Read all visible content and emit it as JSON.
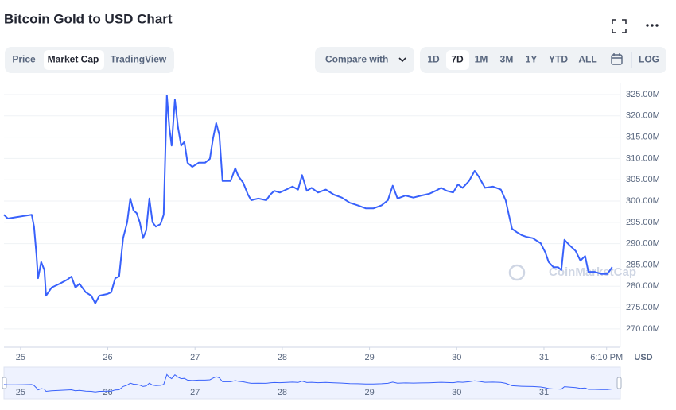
{
  "header": {
    "title": "Bitcoin Gold to USD Chart",
    "tabs": [
      "Price",
      "Market Cap",
      "TradingView"
    ],
    "compare": "Compare with",
    "ranges": [
      "1D",
      "7D",
      "1M",
      "3M",
      "1Y",
      "YTD",
      "ALL"
    ],
    "log": "LOG"
  },
  "chart_data": {
    "type": "line",
    "color": "#3861fb",
    "grid": true,
    "watermark": "CoinMarketCap",
    "currency_label": "USD",
    "xlim": [
      24.81,
      31.83
    ],
    "ylim": [
      265.7,
      327.6
    ],
    "xticks": [
      25,
      26,
      27,
      28,
      29,
      30,
      31,
      {
        "value": 31.718,
        "label": "6:10 PM"
      }
    ],
    "yticks": [
      {
        "value": 270,
        "label": "270.00M"
      },
      {
        "value": 275,
        "label": "275.00M"
      },
      {
        "value": 280,
        "label": "280.00M"
      },
      {
        "value": 285,
        "label": "285.00M"
      },
      {
        "value": 290,
        "label": "290.00M"
      },
      {
        "value": 295,
        "label": "295.00M"
      },
      {
        "value": 300,
        "label": "300.00M"
      },
      {
        "value": 305,
        "label": "305.00M"
      },
      {
        "value": 310,
        "label": "310.00M"
      },
      {
        "value": 315,
        "label": "315.00M"
      },
      {
        "value": 320,
        "label": "320.00M"
      },
      {
        "value": 325,
        "label": "325.00M"
      }
    ],
    "x": [
      24.809,
      24.854,
      24.945,
      25.036,
      25.128,
      25.155,
      25.182,
      25.201,
      25.237,
      25.273,
      25.292,
      25.356,
      25.447,
      25.538,
      25.583,
      25.629,
      25.675,
      25.747,
      25.811,
      25.857,
      25.903,
      25.994,
      26.039,
      26.085,
      26.13,
      26.176,
      26.222,
      26.258,
      26.294,
      26.331,
      26.367,
      26.404,
      26.44,
      26.477,
      26.513,
      26.55,
      26.604,
      26.641,
      26.677,
      26.705,
      26.732,
      26.769,
      26.805,
      26.841,
      26.878,
      26.914,
      26.969,
      27.042,
      27.115,
      27.17,
      27.206,
      27.242,
      27.279,
      27.315,
      27.407,
      27.461,
      27.498,
      27.552,
      27.607,
      27.644,
      27.726,
      27.817,
      27.862,
      27.908,
      27.972,
      28.045,
      28.118,
      28.181,
      28.227,
      28.282,
      28.336,
      28.409,
      28.5,
      28.592,
      28.683,
      28.774,
      28.865,
      28.956,
      29.047,
      29.139,
      29.211,
      29.266,
      29.321,
      29.412,
      29.503,
      29.594,
      29.686,
      29.758,
      29.822,
      29.886,
      29.959,
      30.014,
      30.068,
      30.141,
      30.205,
      30.251,
      30.324,
      30.415,
      30.506,
      30.561,
      30.597,
      30.634,
      30.688,
      30.743,
      30.798,
      30.871,
      30.962,
      31.017,
      31.053,
      31.108,
      31.162,
      31.199,
      31.235,
      31.29,
      31.363,
      31.418,
      31.472,
      31.509,
      31.582,
      31.655,
      31.728,
      31.782
    ],
    "values": [
      296.8,
      295.9,
      296.2,
      296.5,
      296.8,
      294.0,
      287.5,
      281.9,
      285.7,
      283.8,
      277.8,
      279.7,
      280.6,
      281.6,
      282.3,
      279.7,
      280.6,
      278.6,
      277.8,
      276.0,
      277.8,
      278.2,
      278.6,
      281.9,
      282.3,
      291.3,
      295.0,
      300.6,
      297.8,
      297.2,
      295.0,
      291.3,
      293.1,
      300.6,
      295.0,
      294.0,
      294.6,
      296.8,
      324.8,
      317.3,
      313.0,
      323.8,
      317.3,
      313.0,
      313.9,
      309.0,
      308.0,
      309.0,
      309.0,
      309.9,
      314.6,
      318.3,
      315.5,
      304.7,
      304.7,
      307.7,
      305.8,
      304.3,
      301.5,
      300.2,
      300.6,
      300.2,
      301.5,
      302.4,
      302.0,
      302.7,
      303.4,
      302.7,
      306.1,
      302.4,
      303.1,
      302.0,
      302.7,
      301.5,
      300.8,
      299.6,
      299.0,
      298.3,
      298.3,
      299.0,
      300.2,
      303.6,
      300.6,
      301.3,
      300.8,
      301.3,
      301.7,
      302.4,
      303.1,
      302.4,
      302.0,
      303.9,
      303.1,
      304.7,
      307.1,
      305.8,
      303.1,
      303.4,
      302.7,
      300.2,
      296.8,
      293.5,
      292.7,
      292.0,
      291.6,
      291.3,
      290.1,
      287.9,
      285.7,
      284.5,
      284.5,
      283.8,
      290.9,
      289.7,
      288.3,
      286.0,
      287.1,
      283.4,
      283.4,
      282.9,
      282.9,
      284.5
    ]
  }
}
